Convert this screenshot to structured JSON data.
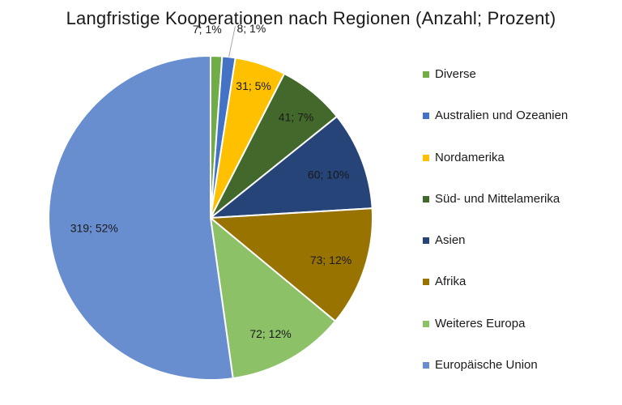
{
  "chart_data": {
    "type": "pie",
    "title": "Langfristige Kooperationen nach Regionen (Anzahl; Prozent)",
    "legend_position": "right",
    "slices": [
      {
        "label": "Diverse",
        "value": 7,
        "percent": 1,
        "data_label": "7; 1%",
        "color": "#70ad47"
      },
      {
        "label": "Australien und Ozeanien",
        "value": 8,
        "percent": 1,
        "data_label": "8; 1%",
        "color": "#4472c4"
      },
      {
        "label": "Nordamerika",
        "value": 31,
        "percent": 5,
        "data_label": "31; 5%",
        "color": "#ffc000"
      },
      {
        "label": "Süd- und Mittelamerika",
        "value": 41,
        "percent": 7,
        "data_label": "41; 7%",
        "color": "#43682b"
      },
      {
        "label": "Asien",
        "value": 60,
        "percent": 10,
        "data_label": "60; 10%",
        "color": "#264478"
      },
      {
        "label": "Afrika",
        "value": 73,
        "percent": 12,
        "data_label": "73; 12%",
        "color": "#997300"
      },
      {
        "label": "Weiteres Europa",
        "value": 72,
        "percent": 12,
        "data_label": "72; 12%",
        "color": "#8cc168"
      },
      {
        "label": "Europäische Union",
        "value": 319,
        "percent": 52,
        "data_label": "319; 52%",
        "color": "#698ed0"
      }
    ]
  }
}
